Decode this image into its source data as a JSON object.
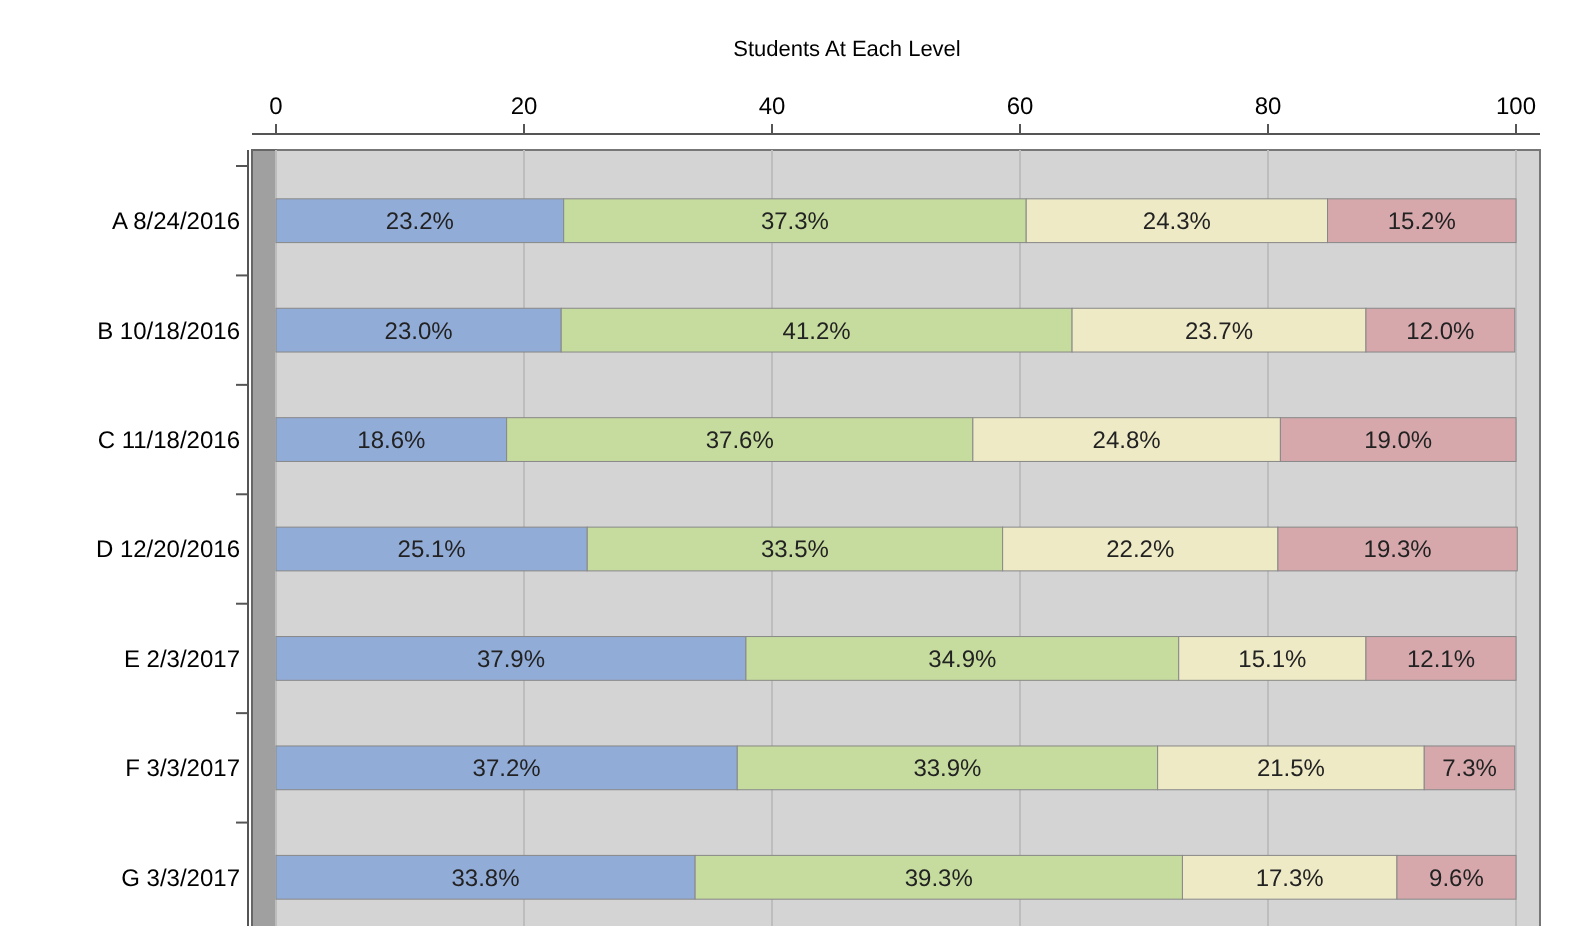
{
  "chart_data": {
    "type": "bar",
    "orientation": "horizontal",
    "stacked": true,
    "title": "Students At Each Level",
    "categories": [
      "A 8/24/2016",
      "B 10/18/2016",
      "C 11/18/2016",
      "D 12/20/2016",
      "E 2/3/2017",
      "F 3/3/2017",
      "G 3/3/2017"
    ],
    "xlim": [
      0,
      100
    ],
    "xticks": [
      0,
      20,
      40,
      60,
      80,
      100
    ],
    "grid": "x",
    "series": [
      {
        "color": "#92acd8",
        "values": [
          23.2,
          23.0,
          18.6,
          25.1,
          37.9,
          37.2,
          33.8
        ],
        "value_labels": [
          "23.2%",
          "23.0%",
          "18.6%",
          "25.1%",
          "37.9%",
          "37.2%",
          "33.8%"
        ]
      },
      {
        "color": "#c6dc9e",
        "values": [
          37.3,
          41.2,
          37.6,
          33.5,
          34.9,
          33.9,
          39.3
        ],
        "value_labels": [
          "37.3%",
          "41.2%",
          "37.6%",
          "33.5%",
          "34.9%",
          "33.9%",
          "39.3%"
        ]
      },
      {
        "color": "#eeeac6",
        "values": [
          24.3,
          23.7,
          24.8,
          22.2,
          15.1,
          21.5,
          17.3
        ],
        "value_labels": [
          "24.3%",
          "23.7%",
          "24.8%",
          "22.2%",
          "15.1%",
          "21.5%",
          "17.3%"
        ]
      },
      {
        "color": "#d6a8ac",
        "values": [
          15.2,
          12.0,
          19.0,
          19.3,
          12.1,
          7.3,
          9.6
        ],
        "value_labels": [
          "15.2%",
          "12.0%",
          "19.0%",
          "19.3%",
          "12.1%",
          "7.3%",
          "9.6%"
        ]
      }
    ]
  }
}
